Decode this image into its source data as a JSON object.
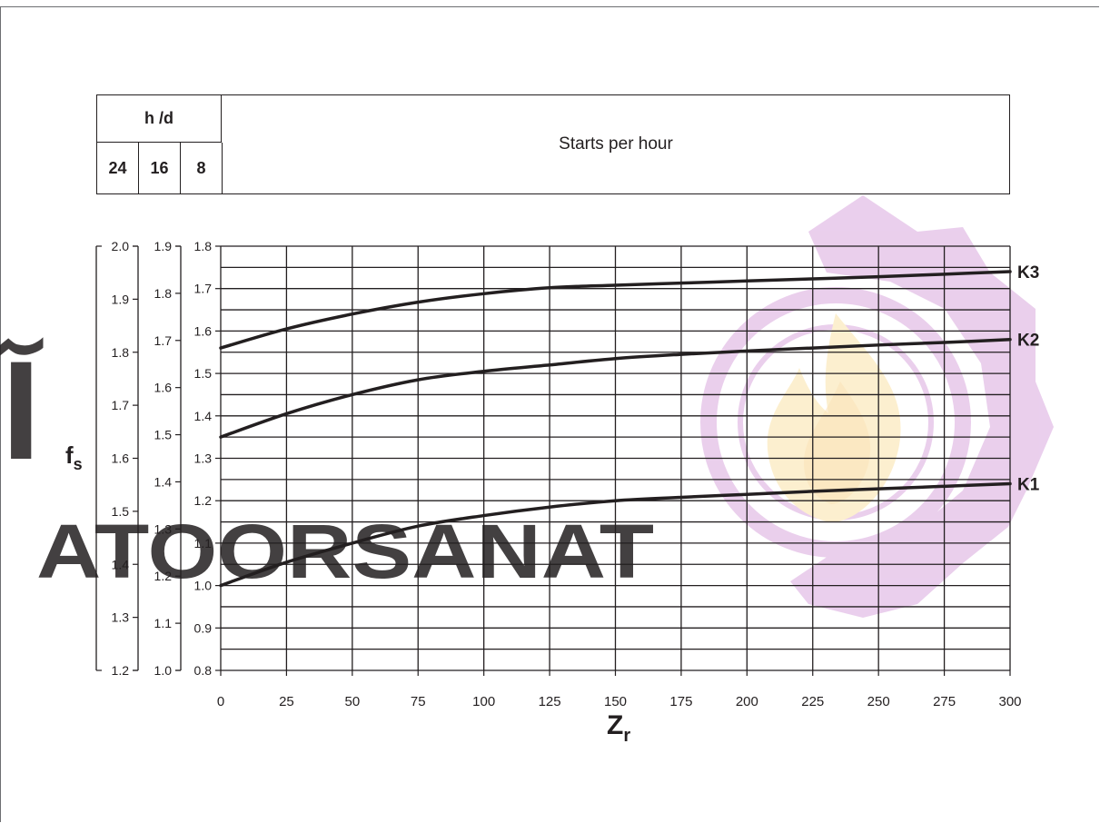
{
  "header": {
    "hours_label": "h /d",
    "hours_values": [
      "24",
      "16",
      "8"
    ],
    "x_title": "Starts per hour"
  },
  "watermark": {
    "latin": "ATOORSANAT",
    "arabic": "آتور صنعت",
    "color": "#d9a8de"
  },
  "chart_data": {
    "type": "line",
    "x": [
      0,
      25,
      50,
      75,
      100,
      125,
      150,
      175,
      200,
      225,
      250,
      275,
      300
    ],
    "x_ticks": [
      "0",
      "25",
      "50",
      "75",
      "100",
      "125",
      "150",
      "175",
      "200",
      "225",
      "250",
      "275",
      "300"
    ],
    "xlim": [
      0,
      300
    ],
    "xlabel_main": "Z",
    "xlabel_sub": "r",
    "ylabel_main": "f",
    "ylabel_sub": "s",
    "y_axes": [
      {
        "hours": "24",
        "ylim": [
          1.2,
          2.0
        ],
        "ticks": [
          "1.2",
          "1.3",
          "1.4",
          "1.5",
          "1.6",
          "1.7",
          "1.8",
          "1.9",
          "2.0"
        ]
      },
      {
        "hours": "16",
        "ylim": [
          1.0,
          1.9
        ],
        "ticks": [
          "1.0",
          "1.1",
          "1.2",
          "1.3",
          "1.4",
          "1.5",
          "1.6",
          "1.7",
          "1.8",
          "1.9"
        ]
      },
      {
        "hours": "8",
        "ylim": [
          0.8,
          1.8
        ],
        "ticks": [
          "0.8",
          "0.9",
          "1.0",
          "1.1",
          "1.2",
          "1.3",
          "1.4",
          "1.5",
          "1.6",
          "1.7",
          "1.8"
        ]
      }
    ],
    "series": [
      {
        "name": "K1",
        "values": [
          1.0,
          1.055,
          1.1,
          1.14,
          1.165,
          1.185,
          1.2,
          1.208,
          1.215,
          1.222,
          1.228,
          1.234,
          1.24
        ]
      },
      {
        "name": "K2",
        "values": [
          1.35,
          1.405,
          1.45,
          1.485,
          1.505,
          1.52,
          1.535,
          1.545,
          1.553,
          1.56,
          1.567,
          1.573,
          1.58
        ]
      },
      {
        "name": "K3",
        "values": [
          1.56,
          1.605,
          1.64,
          1.668,
          1.688,
          1.702,
          1.708,
          1.713,
          1.718,
          1.723,
          1.728,
          1.734,
          1.74
        ]
      }
    ],
    "grid": true
  }
}
